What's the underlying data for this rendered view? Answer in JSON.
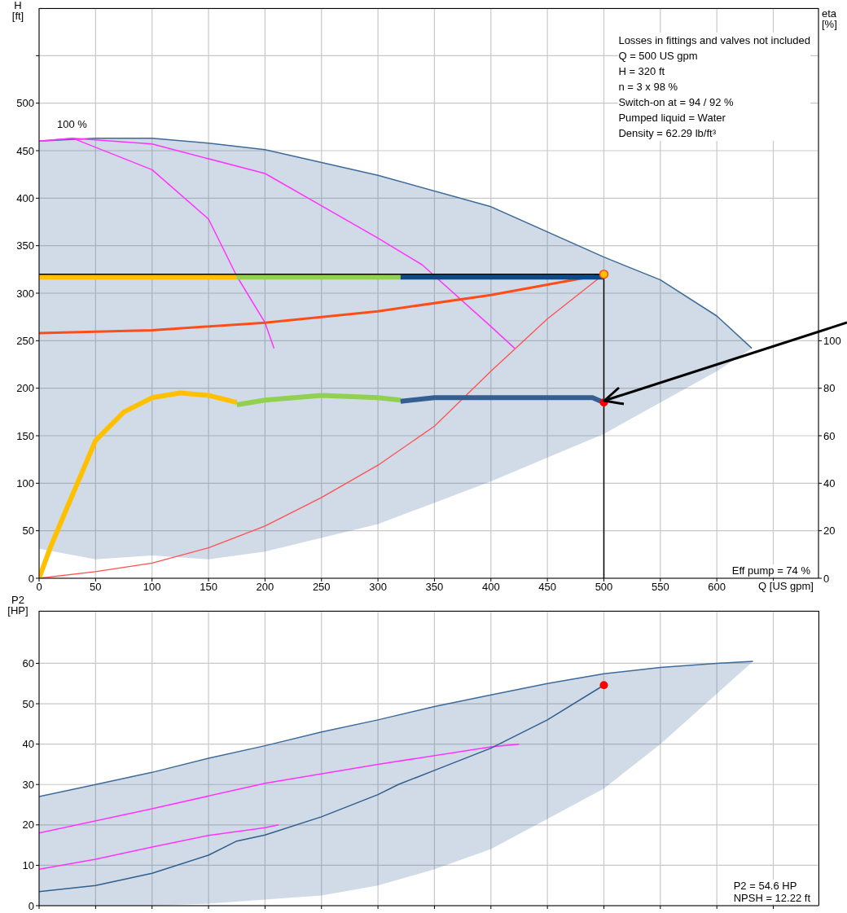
{
  "chart_data": [
    {
      "type": "line",
      "xlabel": "Q [US gpm]",
      "ylabel": "H [ft]",
      "y2label": "eta [%]",
      "xlim": [
        0,
        690
      ],
      "xticks": [
        0,
        50,
        100,
        150,
        200,
        250,
        300,
        350,
        400,
        450,
        500,
        550,
        600,
        {
          "value": 650,
          "label": null
        }
      ],
      "ylim": [
        0,
        600
      ],
      "yticks": [
        0,
        50,
        100,
        150,
        200,
        250,
        300,
        350,
        400,
        450,
        500,
        {
          "value": 550,
          "label": null
        }
      ],
      "y2lim": [
        0,
        240
      ],
      "y2ticks": [
        0,
        20,
        40,
        60,
        80,
        100
      ],
      "grid": true,
      "series": [
        {
          "x": [
            0,
            50,
            100,
            150,
            200,
            300,
            400,
            500,
            550,
            600,
            631
          ],
          "values": [
            460,
            463,
            463,
            458,
            451,
            424,
            391,
            338,
            314,
            276,
            242
          ],
          "lower": [
            31,
            20,
            24,
            20,
            28,
            57,
            102,
            152,
            185,
            218,
            242
          ],
          "upper": [
            460,
            463,
            463,
            458,
            451,
            424,
            391,
            338,
            314,
            276,
            242
          ],
          "color": "#3d6a9a"
        },
        {
          "x": [
            0,
            30,
            100,
            150,
            175,
            200,
            208
          ],
          "values": [
            460,
            463,
            430,
            378,
            318,
            269,
            242
          ],
          "color": "#ff33ff"
        },
        {
          "x": [
            0,
            30,
            100,
            200,
            300,
            339,
            400,
            421
          ],
          "values": [
            460,
            463,
            457,
            426,
            358,
            330,
            265,
            242
          ],
          "color": "#ff33ff"
        },
        {
          "x": [
            0,
            100,
            200,
            300,
            400,
            500
          ],
          "values": [
            258,
            261,
            269,
            281,
            298,
            320
          ],
          "color": "#ff4d1a"
        },
        {
          "x": [
            0,
            50,
            100,
            150,
            200,
            250,
            300,
            350,
            400,
            450,
            500
          ],
          "values": [
            0,
            7,
            16,
            32,
            55,
            85,
            119,
            160,
            218,
            273,
            320
          ],
          "color": "#ff5050"
        },
        {
          "x": [
            0,
            175
          ],
          "values": [
            317,
            317
          ],
          "color": "#ffc000"
        },
        {
          "x": [
            175,
            320
          ],
          "values": [
            317,
            317
          ],
          "color": "#92d050"
        },
        {
          "x": [
            320,
            500
          ],
          "values": [
            317,
            317
          ],
          "color": "#0d4a85"
        },
        {
          "x": [
            0,
            500,
            500
          ],
          "values": [
            320,
            320,
            0
          ],
          "color": "#000000"
        },
        {
          "x": [
            0,
            10,
            25,
            50,
            75,
            100,
            125,
            150,
            175
          ],
          "values": [
            0,
            13,
            30,
            58,
            70,
            76,
            78,
            77,
            74
          ],
          "color": "#ffc000",
          "axis": "y2"
        },
        {
          "x": [
            175,
            200,
            250,
            300,
            320
          ],
          "values": [
            73,
            75,
            77,
            76,
            75
          ],
          "color": "#92d050",
          "axis": "y2"
        },
        {
          "x": [
            320,
            350,
            400,
            450,
            490,
            500
          ],
          "values": [
            74.5,
            76,
            76,
            76,
            76,
            74
          ],
          "color": "#365f91",
          "axis": "y2"
        },
        {
          "type": "scatter",
          "x": [
            500
          ],
          "values": [
            320
          ],
          "color": "#ffc000"
        },
        {
          "type": "scatter",
          "x": [
            500
          ],
          "values": [
            74
          ],
          "color": "#ff0000",
          "axis": "y2"
        }
      ],
      "annotations": [
        "100 %",
        "Losses in fittings and valves not included",
        "Q = 500 US gpm",
        "H = 320 ft",
        "n = 3 x 98 %",
        "Switch-on at = 94 / 92 %",
        "Pumped liquid = Water",
        "Density = 62.29 lb/ft³",
        "Eff pump = 74 %"
      ]
    },
    {
      "type": "line",
      "ylabel": "P2 [HP]",
      "xlim": [
        0,
        690
      ],
      "xticks": [
        0,
        50,
        100,
        150,
        200,
        250,
        300,
        350,
        400,
        450,
        500,
        550,
        600,
        650
      ],
      "ylim": [
        0,
        73
      ],
      "yticks": [
        0,
        10,
        20,
        30,
        40,
        50,
        60
      ],
      "grid": true,
      "tick_labels": "y",
      "series": [
        {
          "x": [
            0,
            50,
            100,
            150,
            200,
            250,
            300,
            350,
            400,
            450,
            500,
            550,
            600,
            632
          ],
          "values": [
            27,
            30,
            33,
            36.5,
            39.6,
            43,
            46,
            49.3,
            52.2,
            55,
            57.4,
            59,
            60,
            60.5
          ],
          "lower": [
            0,
            0,
            0,
            0.5,
            1.5,
            2.5,
            5,
            9,
            14,
            21.5,
            29,
            40,
            52.5,
            60.5
          ],
          "upper": [
            27,
            30,
            33,
            36.5,
            39.6,
            43,
            46,
            49.3,
            52.2,
            55,
            57.4,
            59,
            60,
            60.5
          ],
          "color": "#3d6a9a"
        },
        {
          "x": [
            0,
            100,
            200,
            300,
            400,
            425
          ],
          "values": [
            18,
            24,
            30.3,
            35,
            39.3,
            40
          ],
          "color": "#ff33ff"
        },
        {
          "x": [
            0,
            50,
            100,
            150,
            200,
            212
          ],
          "values": [
            9,
            11.5,
            14.5,
            17.4,
            19.3,
            20
          ],
          "color": "#ff33ff"
        },
        {
          "x": [
            0,
            50,
            100,
            150,
            175,
            200,
            250,
            300,
            318,
            350,
            400,
            450,
            500
          ],
          "values": [
            3.5,
            5,
            8,
            12.5,
            16,
            17.5,
            22,
            27.5,
            30,
            33.5,
            39,
            46,
            54.6
          ],
          "color": "#2f5f8f"
        },
        {
          "type": "scatter",
          "x": [
            500
          ],
          "values": [
            54.6
          ],
          "color": "#ff0000"
        }
      ],
      "annotations": [
        "P2 = 54.6 HP",
        "NPSH = 12.22 ft"
      ]
    }
  ]
}
